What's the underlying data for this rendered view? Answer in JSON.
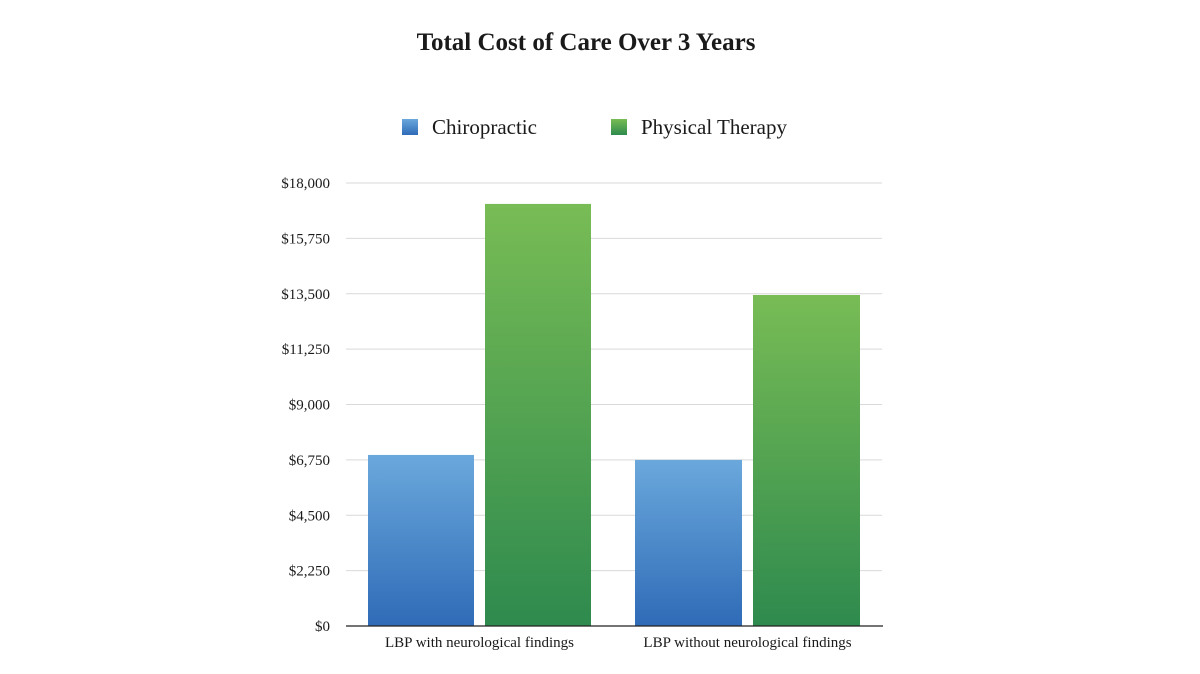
{
  "chart_data": {
    "type": "bar",
    "title": "Total Cost of Care Over 3 Years",
    "categories": [
      "LBP with neurological findings",
      "LBP without neurological findings"
    ],
    "series": [
      {
        "name": "Chiropractic",
        "values": [
          6950,
          6750
        ],
        "color_top": "#6aa8dc",
        "color_bottom": "#2f6bb7"
      },
      {
        "name": "Physical Therapy",
        "values": [
          17150,
          13450
        ],
        "color_top": "#78bc55",
        "color_bottom": "#2e8a4e"
      }
    ],
    "ylim": [
      0,
      18000
    ],
    "yticks": [
      0,
      2250,
      4500,
      6750,
      9000,
      11250,
      13500,
      15750,
      18000
    ],
    "ytick_labels": [
      "$0",
      "$2,250",
      "$4,500",
      "$6,750",
      "$9,000",
      "$11,250",
      "$13,500",
      "$15,750",
      "$18,000"
    ],
    "xlabel": "",
    "ylabel": "",
    "grid": true,
    "legend_position": "top-center"
  }
}
